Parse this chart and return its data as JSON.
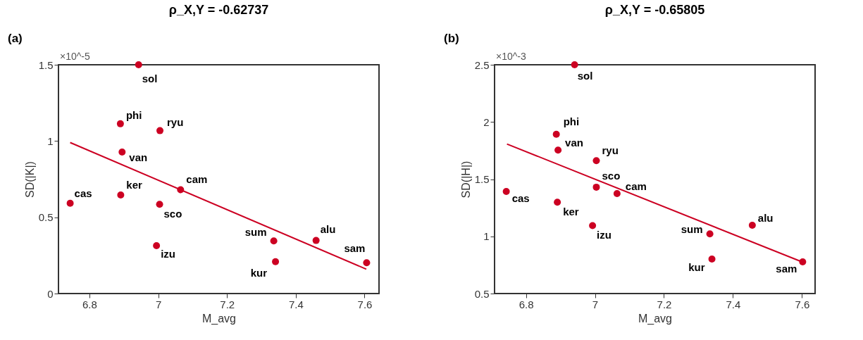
{
  "chart_data": [
    {
      "type": "scatter",
      "title": "ρ_X,Y = -0.62737",
      "xlabel": "M_avg",
      "ylabel": "SD(|K|)",
      "xlim": [
        6.71,
        7.642
      ],
      "xticks": [
        6.8,
        7,
        7.2,
        7.4,
        7.6
      ],
      "ylim": [
        0,
        1.5
      ],
      "yticks": [
        0,
        0.5,
        1,
        1.5
      ],
      "grid": false,
      "series": [
        {
          "marker": "circle",
          "color": "#cc0022",
          "x": [
            6.943,
            6.89,
            7.005,
            6.895,
            7.065,
            6.891,
            6.744,
            7.004,
            6.995,
            7.336,
            7.459,
            7.341,
            7.606
          ],
          "values": [
            1.5,
            1.113,
            1.068,
            0.928,
            0.681,
            0.646,
            0.592,
            0.585,
            0.314,
            0.345,
            0.348,
            0.209,
            0.202
          ]
        },
        {
          "type": "line",
          "color": "#cc0022",
          "x": [
            6.744,
            7.605
          ],
          "values": [
            0.99,
            0.16
          ]
        }
      ],
      "annotations": [
        "(a)",
        "×10^-5",
        {
          "text": "sol",
          "x": 6.943,
          "y": 1.5
        },
        {
          "text": "phi",
          "x": 6.89,
          "y": 1.113
        },
        {
          "text": "ryu",
          "x": 7.005,
          "y": 1.068
        },
        {
          "text": "van",
          "x": 6.895,
          "y": 0.928
        },
        {
          "text": "cam",
          "x": 7.065,
          "y": 0.681
        },
        {
          "text": "ker",
          "x": 6.891,
          "y": 0.646
        },
        {
          "text": "cas",
          "x": 6.744,
          "y": 0.592
        },
        {
          "text": "sco",
          "x": 7.004,
          "y": 0.585
        },
        {
          "text": "izu",
          "x": 6.995,
          "y": 0.314
        },
        {
          "text": "sum",
          "x": 7.336,
          "y": 0.345
        },
        {
          "text": "alu",
          "x": 7.459,
          "y": 0.348
        },
        {
          "text": "kur",
          "x": 7.341,
          "y": 0.209
        },
        {
          "text": "sam",
          "x": 7.606,
          "y": 0.202
        }
      ]
    },
    {
      "type": "scatter",
      "title": "ρ_X,Y = -0.65805",
      "xlabel": "M_avg",
      "ylabel": "SD(|H|)",
      "xlim": [
        6.709,
        7.638
      ],
      "xticks": [
        6.8,
        7,
        7.2,
        7.4,
        7.6
      ],
      "ylim": [
        0.5,
        2.5
      ],
      "yticks": [
        0.5,
        1,
        1.5,
        2,
        2.5
      ],
      "grid": false,
      "series": [
        {
          "marker": "circle",
          "color": "#cc0022",
          "x": [
            6.941,
            6.888,
            6.893,
            7.004,
            7.004,
            7.064,
            6.743,
            6.891,
            6.993,
            7.333,
            7.456,
            7.339,
            7.602
          ],
          "values": [
            2.5,
            1.892,
            1.754,
            1.662,
            1.43,
            1.374,
            1.392,
            1.298,
            1.094,
            1.021,
            1.097,
            0.802,
            0.777
          ]
        },
        {
          "type": "line",
          "color": "#cc0022",
          "x": [
            6.745,
            7.6
          ],
          "values": [
            1.807,
            0.777
          ]
        }
      ],
      "annotations": [
        "(b)",
        "×10^-3",
        {
          "text": "sol",
          "x": 6.941,
          "y": 2.5
        },
        {
          "text": "phi",
          "x": 6.888,
          "y": 1.892
        },
        {
          "text": "van",
          "x": 6.893,
          "y": 1.754
        },
        {
          "text": "ryu",
          "x": 7.004,
          "y": 1.662
        },
        {
          "text": "sco",
          "x": 7.004,
          "y": 1.43
        },
        {
          "text": "cam",
          "x": 7.064,
          "y": 1.374
        },
        {
          "text": "cas",
          "x": 6.743,
          "y": 1.392
        },
        {
          "text": "ker",
          "x": 6.891,
          "y": 1.298
        },
        {
          "text": "izu",
          "x": 6.993,
          "y": 1.094
        },
        {
          "text": "sum",
          "x": 7.333,
          "y": 1.021
        },
        {
          "text": "alu",
          "x": 7.456,
          "y": 1.097
        },
        {
          "text": "kur",
          "x": 7.339,
          "y": 0.802
        },
        {
          "text": "sam",
          "x": 7.602,
          "y": 0.777
        }
      ]
    }
  ]
}
